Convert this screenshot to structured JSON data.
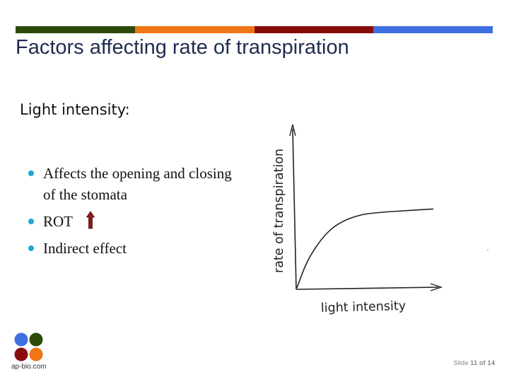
{
  "header": {
    "color_bar": [
      "#2e4a0b",
      "#f07515",
      "#8a0b0b",
      "#3f6fe0"
    ],
    "title": "Factors affecting rate of transpiration"
  },
  "content": {
    "subheading": "Light intensity:",
    "bullet_color": "#1ba9cf",
    "bullets": [
      {
        "text": "Affects the opening and closing of the stomata"
      },
      {
        "text": "ROT",
        "icon": "up-arrow-icon",
        "icon_color": "#8b1a1a"
      },
      {
        "text": "Indirect effect"
      }
    ]
  },
  "chart_data": {
    "type": "line",
    "title": "",
    "xlabel": "light intensity",
    "ylabel": "rate of transpiration",
    "ticks": "none",
    "grid": false,
    "series": [
      {
        "shape": "saturation curve: rises steeply from origin then levels off to a plateau",
        "x": [
          0,
          0.05,
          0.1,
          0.2,
          0.3,
          0.45,
          0.6,
          0.8,
          1.0
        ],
        "y": [
          0,
          0.22,
          0.39,
          0.62,
          0.76,
          0.86,
          0.89,
          0.91,
          0.93
        ]
      }
    ]
  },
  "footer": {
    "logo": {
      "icon": "four-petal-logo-icon",
      "colors": [
        "#3f6fe0",
        "#2e4a0b",
        "#8a0b0b",
        "#f07515"
      ],
      "text": "ap-bio.com"
    },
    "slide_label": "Slide",
    "slide_current": "11",
    "slide_of": "of",
    "slide_total": "14"
  }
}
